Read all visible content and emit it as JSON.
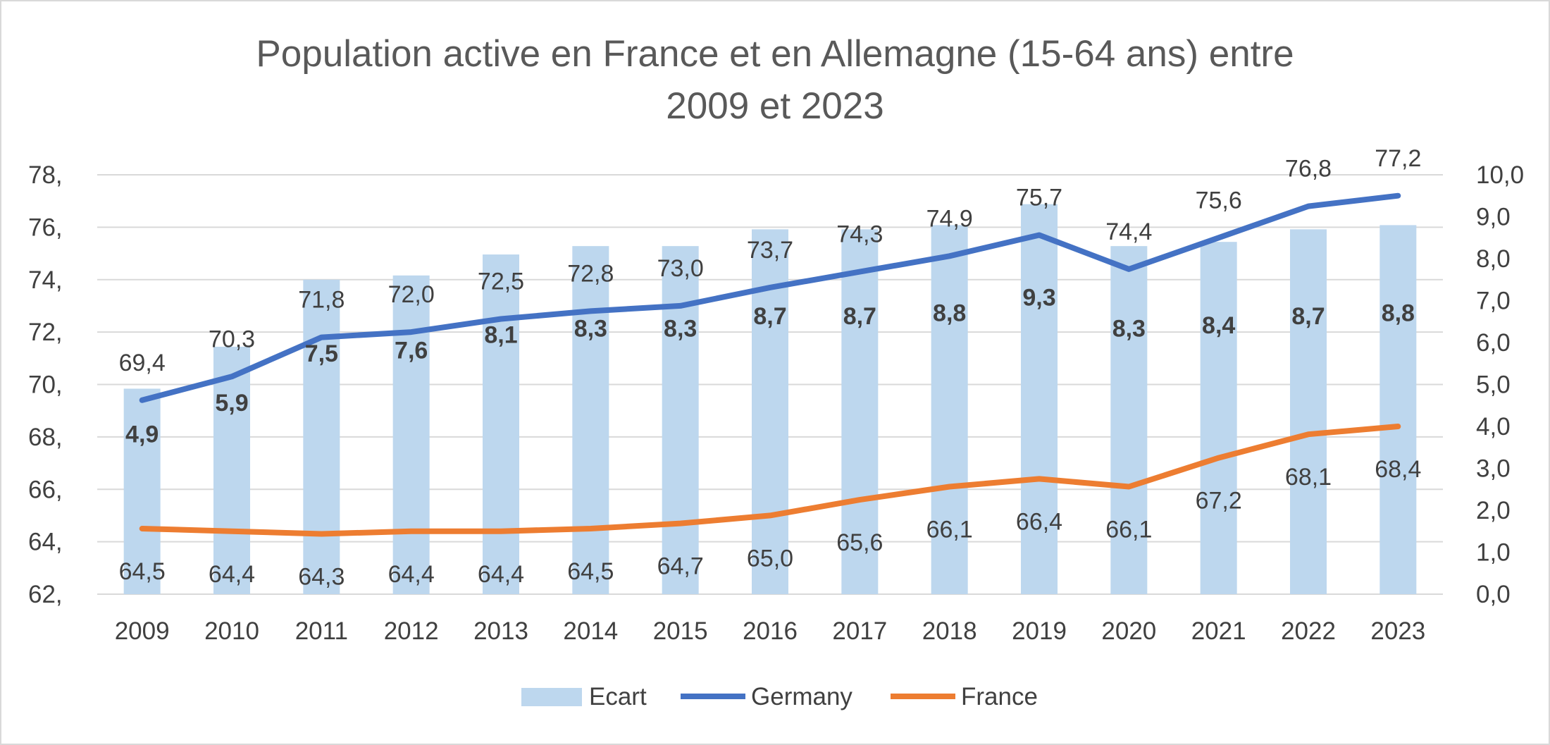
{
  "chart_data": {
    "type": "bar",
    "title_line1": "Population active en France et en Allemagne (15-64 ans) entre",
    "title_line2": "2009 et 2023",
    "categories": [
      "2009",
      "2010",
      "2011",
      "2012",
      "2013",
      "2014",
      "2015",
      "2016",
      "2017",
      "2018",
      "2019",
      "2020",
      "2021",
      "2022",
      "2023"
    ],
    "left_axis": {
      "min": 62,
      "max": 78,
      "ticks": [
        "62,",
        "64,",
        "66,",
        "68,",
        "70,",
        "72,",
        "74,",
        "76,",
        "78,"
      ]
    },
    "right_axis": {
      "min": 0,
      "max": 10,
      "ticks": [
        "0,0",
        "1,0",
        "2,0",
        "3,0",
        "4,0",
        "5,0",
        "6,0",
        "7,0",
        "8,0",
        "9,0",
        "10,0"
      ]
    },
    "series": [
      {
        "name": "Ecart",
        "kind": "bar",
        "axis": "right",
        "color": "#bdd7ee",
        "values": [
          4.9,
          5.9,
          7.5,
          7.6,
          8.1,
          8.3,
          8.3,
          8.7,
          8.7,
          8.8,
          9.3,
          8.3,
          8.4,
          8.7,
          8.8
        ],
        "labels": [
          "4,9",
          "5,9",
          "7,5",
          "7,6",
          "8,1",
          "8,3",
          "8,3",
          "8,7",
          "8,7",
          "8,8",
          "9,3",
          "8,3",
          "8,4",
          "8,7",
          "8,8"
        ]
      },
      {
        "name": "Germany",
        "kind": "line",
        "axis": "left",
        "color": "#4472c4",
        "values": [
          69.4,
          70.3,
          71.8,
          72.0,
          72.5,
          72.8,
          73.0,
          73.7,
          74.3,
          74.9,
          75.7,
          74.4,
          75.6,
          76.8,
          77.2
        ],
        "labels": [
          "69,4",
          "70,3",
          "71,8",
          "72,0",
          "72,5",
          "72,8",
          "73,0",
          "73,7",
          "74,3",
          "74,9",
          "75,7",
          "74,4",
          "75,6",
          "76,8",
          "77,2"
        ]
      },
      {
        "name": "France",
        "kind": "line",
        "axis": "left",
        "color": "#ed7d31",
        "values": [
          64.5,
          64.4,
          64.3,
          64.4,
          64.4,
          64.5,
          64.7,
          65.0,
          65.6,
          66.1,
          66.4,
          66.1,
          67.2,
          68.1,
          68.4
        ],
        "labels": [
          "64,5",
          "64,4",
          "64,3",
          "64,4",
          "64,4",
          "64,5",
          "64,7",
          "65,0",
          "65,6",
          "66,1",
          "66,4",
          "66,1",
          "67,2",
          "68,1",
          "68,4"
        ]
      }
    ],
    "grid": true,
    "legend_position": "bottom"
  }
}
